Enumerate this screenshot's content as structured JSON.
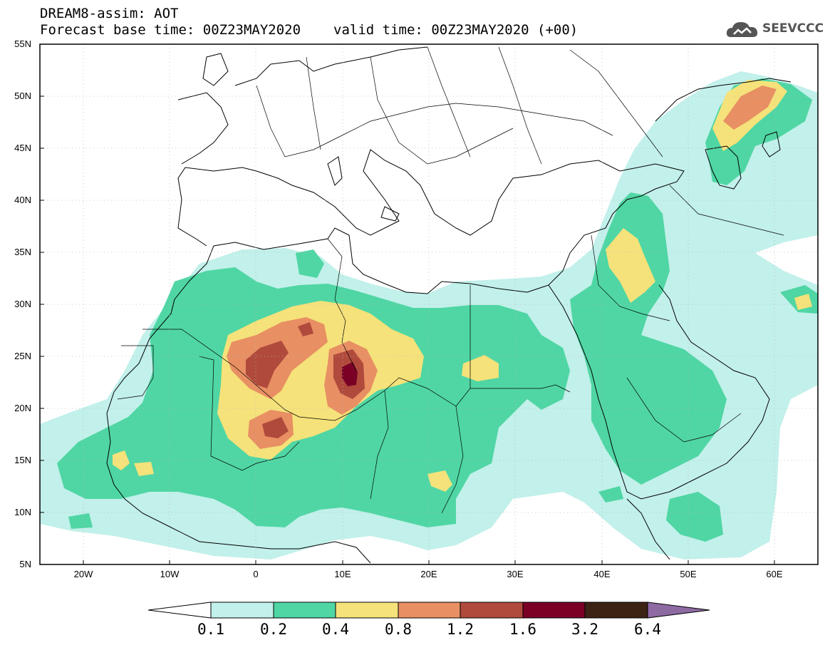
{
  "header": {
    "title": "DREAM8-assim: AOT",
    "base_time": "Forecast base time: 00Z23MAY2020",
    "valid_time": "valid time: 00Z23MAY2020 (+00)",
    "logo_text": "SEEVCCC"
  },
  "axes": {
    "lat_labels": [
      "55N",
      "50N",
      "45N",
      "40N",
      "35N",
      "30N",
      "25N",
      "20N",
      "15N",
      "10N",
      "5N"
    ],
    "lon_labels": [
      "20W",
      "10W",
      "0",
      "10E",
      "20E",
      "30E",
      "40E",
      "50E",
      "60E"
    ]
  },
  "colorbar": {
    "labels": [
      "0.1",
      "0.2",
      "0.4",
      "0.8",
      "1.2",
      "1.6",
      "3.2",
      "6.4"
    ],
    "colors": [
      "#ffffff",
      "#c2f0ea",
      "#4fd6a4",
      "#f5e27a",
      "#e88f63",
      "#b04a3c",
      "#7a0026",
      "#3d2314",
      "#8e6aa3"
    ]
  },
  "map": {
    "colors": {
      "c01": "#c2f0ea",
      "c02": "#4fd6a4",
      "c04": "#f5e27a",
      "c08": "#e88f63",
      "c12": "#b04a3c",
      "c16": "#7a0026"
    }
  }
}
